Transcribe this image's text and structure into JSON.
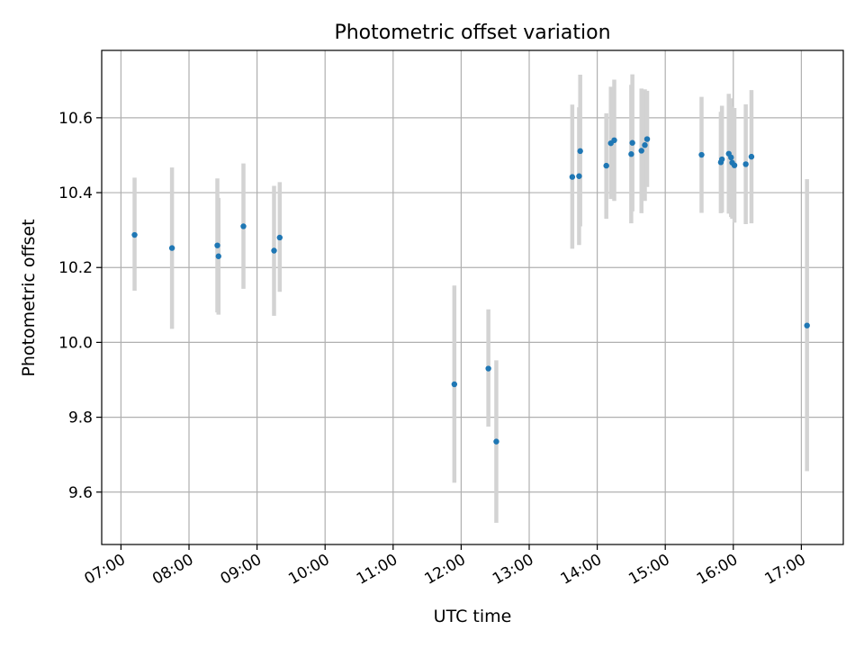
{
  "chart_data": {
    "type": "scatter",
    "title": "Photometric offset variation",
    "xlabel": "UTC time",
    "ylabel": "Photometric offset",
    "x_tick_labels": [
      "07:00",
      "08:00",
      "09:00",
      "10:00",
      "11:00",
      "12:00",
      "13:00",
      "14:00",
      "15:00",
      "16:00",
      "17:00"
    ],
    "y_ticks": [
      9.6,
      9.8,
      10.0,
      10.2,
      10.4,
      10.6
    ],
    "y_tick_labels": [
      "9.6",
      "9.8",
      "10.0",
      "10.2",
      "10.4",
      "10.6"
    ],
    "xlim": [
      "06:43",
      "17:37"
    ],
    "ylim": [
      9.46,
      10.78
    ],
    "grid": true,
    "colors": {
      "point": "#1f77b4",
      "errorbar": "#d3d3d3",
      "grid": "#b0b0b0"
    },
    "points": [
      {
        "t": "07:12",
        "y": 10.287,
        "ylo": 10.138,
        "yhi": 10.44
      },
      {
        "t": "07:45",
        "y": 10.252,
        "ylo": 10.036,
        "yhi": 10.467
      },
      {
        "t": "08:25",
        "y": 10.259,
        "ylo": 10.08,
        "yhi": 10.438
      },
      {
        "t": "08:26",
        "y": 10.23,
        "ylo": 10.074,
        "yhi": 10.386
      },
      {
        "t": "08:48",
        "y": 10.31,
        "ylo": 10.143,
        "yhi": 10.478
      },
      {
        "t": "09:15",
        "y": 10.245,
        "ylo": 10.071,
        "yhi": 10.418
      },
      {
        "t": "09:20",
        "y": 10.28,
        "ylo": 10.135,
        "yhi": 10.428
      },
      {
        "t": "11:54",
        "y": 9.888,
        "ylo": 9.625,
        "yhi": 10.152
      },
      {
        "t": "12:24",
        "y": 9.93,
        "ylo": 9.775,
        "yhi": 10.088
      },
      {
        "t": "12:31",
        "y": 9.735,
        "ylo": 9.518,
        "yhi": 9.952
      },
      {
        "t": "13:38",
        "y": 10.442,
        "ylo": 10.25,
        "yhi": 10.635
      },
      {
        "t": "13:44",
        "y": 10.444,
        "ylo": 10.26,
        "yhi": 10.628
      },
      {
        "t": "13:45",
        "y": 10.511,
        "ylo": 10.31,
        "yhi": 10.715
      },
      {
        "t": "14:08",
        "y": 10.472,
        "ylo": 10.33,
        "yhi": 10.612
      },
      {
        "t": "14:12",
        "y": 10.532,
        "ylo": 10.383,
        "yhi": 10.683
      },
      {
        "t": "14:15",
        "y": 10.54,
        "ylo": 10.378,
        "yhi": 10.702
      },
      {
        "t": "14:30",
        "y": 10.503,
        "ylo": 10.318,
        "yhi": 10.688
      },
      {
        "t": "14:31",
        "y": 10.533,
        "ylo": 10.35,
        "yhi": 10.716
      },
      {
        "t": "14:39",
        "y": 10.512,
        "ylo": 10.345,
        "yhi": 10.678
      },
      {
        "t": "14:42",
        "y": 10.527,
        "ylo": 10.378,
        "yhi": 10.676
      },
      {
        "t": "14:44",
        "y": 10.543,
        "ylo": 10.415,
        "yhi": 10.672
      },
      {
        "t": "15:32",
        "y": 10.501,
        "ylo": 10.346,
        "yhi": 10.656
      },
      {
        "t": "15:49",
        "y": 10.481,
        "ylo": 10.345,
        "yhi": 10.616
      },
      {
        "t": "15:50",
        "y": 10.489,
        "ylo": 10.347,
        "yhi": 10.632
      },
      {
        "t": "15:56",
        "y": 10.504,
        "ylo": 10.344,
        "yhi": 10.664
      },
      {
        "t": "15:58",
        "y": 10.494,
        "ylo": 10.335,
        "yhi": 10.652
      },
      {
        "t": "15:59",
        "y": 10.48,
        "ylo": 10.33,
        "yhi": 10.63
      },
      {
        "t": "16:01",
        "y": 10.473,
        "ylo": 10.32,
        "yhi": 10.626
      },
      {
        "t": "16:11",
        "y": 10.476,
        "ylo": 10.316,
        "yhi": 10.636
      },
      {
        "t": "16:16",
        "y": 10.496,
        "ylo": 10.318,
        "yhi": 10.674
      },
      {
        "t": "17:05",
        "y": 10.045,
        "ylo": 9.656,
        "yhi": 10.436
      }
    ]
  }
}
